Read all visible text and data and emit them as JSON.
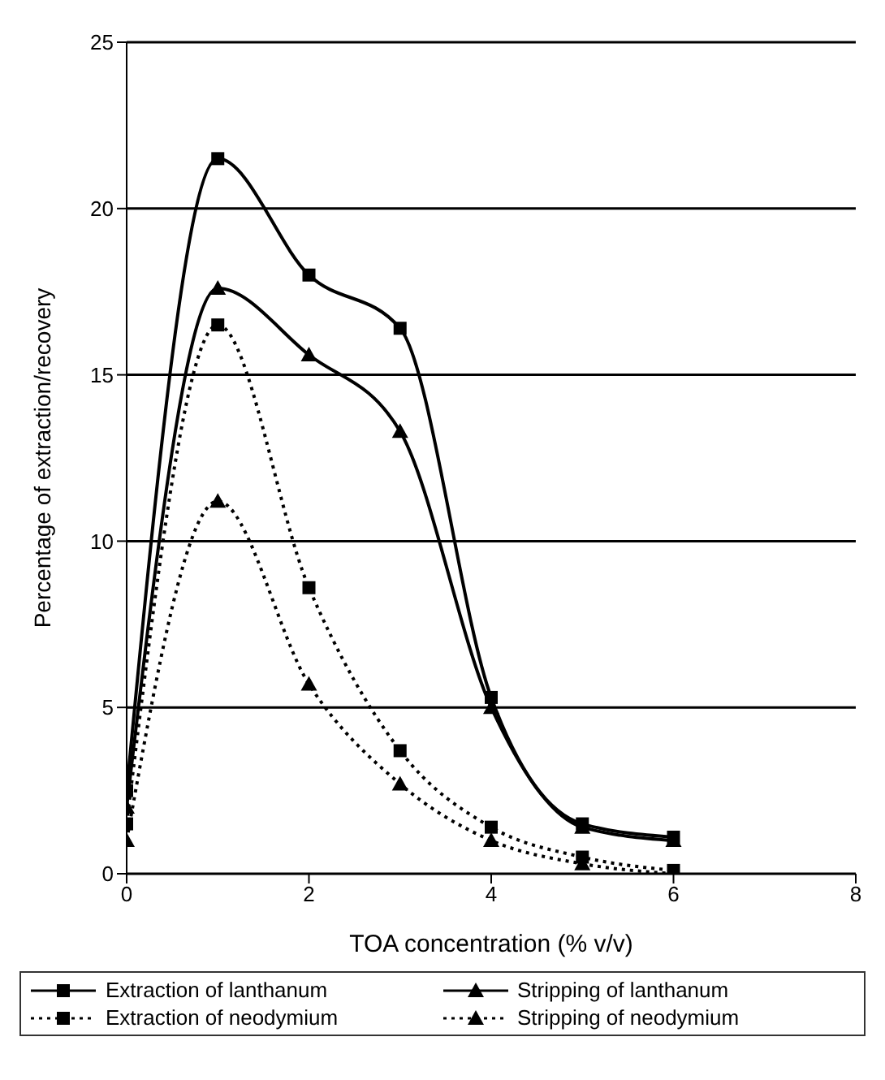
{
  "chart_data": {
    "type": "line",
    "xlabel": "TOA concentration (% v/v)",
    "ylabel": "Percentage of extraction/recovery",
    "x": [
      0,
      1,
      2,
      3,
      4,
      5,
      6
    ],
    "xlim": [
      0,
      8
    ],
    "xticks": [
      0,
      2,
      4,
      6,
      8
    ],
    "ylim": [
      0,
      25
    ],
    "yticks": [
      0,
      5,
      10,
      15,
      20,
      25
    ],
    "grid": "y",
    "legend": "bottom",
    "series": [
      {
        "name": "Extraction of lanthanum",
        "color": "#000000",
        "marker": "square",
        "line_style": "solid",
        "values": [
          2.5,
          21.5,
          18,
          16.4,
          5.3,
          1.5,
          1.1
        ]
      },
      {
        "name": "Stripping of lanthanum",
        "color": "#000000",
        "marker": "triangle",
        "line_style": "solid",
        "values": [
          2,
          17.6,
          15.6,
          13.3,
          5,
          1.4,
          1
        ]
      },
      {
        "name": "Extraction of neodymium",
        "color": "#000000",
        "marker": "square",
        "line_style": "dotted",
        "values": [
          1.5,
          16.5,
          8.6,
          3.7,
          1.4,
          0.5,
          0.1
        ]
      },
      {
        "name": "Stripping of neodymium",
        "color": "#000000",
        "marker": "triangle",
        "line_style": "dotted",
        "values": [
          1,
          11.2,
          5.7,
          2.7,
          1,
          0.3,
          0
        ]
      }
    ]
  }
}
